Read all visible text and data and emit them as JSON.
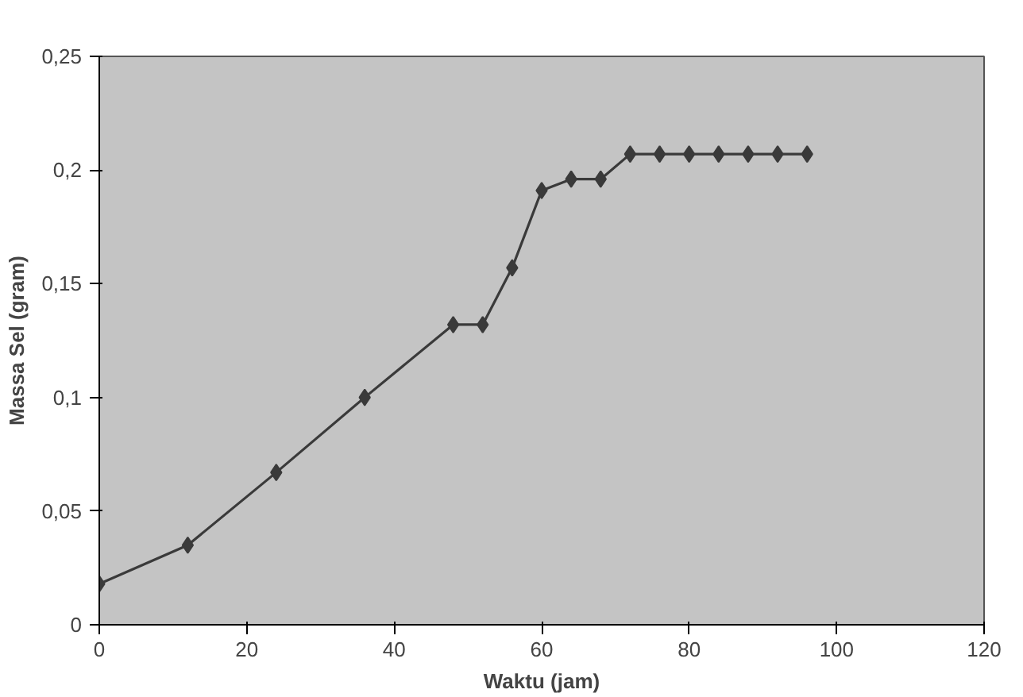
{
  "chart_data": {
    "type": "line",
    "xlabel": "Waktu (jam)",
    "ylabel": "Massa Sel (gram)",
    "x": [
      0,
      12,
      24,
      36,
      48,
      52,
      56,
      60,
      64,
      68,
      72,
      76,
      80,
      84,
      88,
      92,
      96
    ],
    "series": [
      {
        "color": "#3a3a3a",
        "values": [
          0.018,
          0.035,
          0.067,
          0.1,
          0.132,
          0.132,
          0.157,
          0.191,
          0.196,
          0.196,
          0.207,
          0.207,
          0.207,
          0.207,
          0.207,
          0.207,
          0.207
        ]
      }
    ],
    "xlim": [
      0,
      120
    ],
    "xticks": [
      0,
      20,
      40,
      60,
      80,
      100,
      120
    ],
    "ylim": [
      0,
      0.25
    ],
    "yticks": [
      {
        "value": 0,
        "label": "0"
      },
      {
        "value": 0.05,
        "label": "0,05"
      },
      {
        "value": 0.1,
        "label": "0,1"
      },
      {
        "value": 0.15,
        "label": "0,15"
      },
      {
        "value": 0.2,
        "label": "0,2"
      },
      {
        "value": 0.25,
        "label": "0,25"
      }
    ],
    "marker": "diamond",
    "line_style": "solid"
  }
}
